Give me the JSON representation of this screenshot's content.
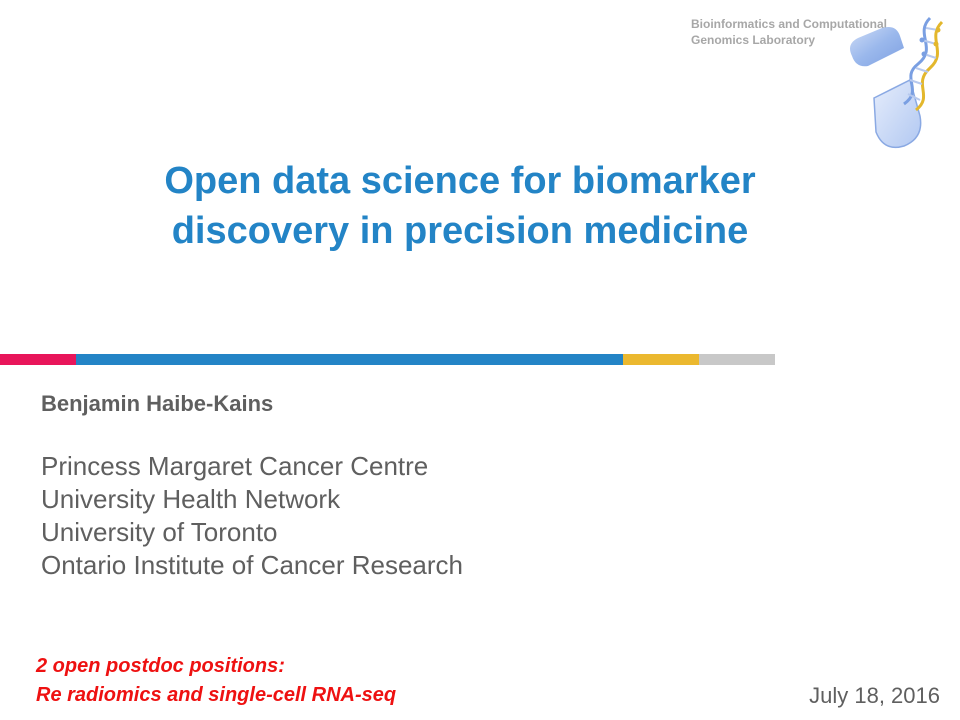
{
  "lab": {
    "line1": "Bioinformatics and Computational",
    "line2": "Genomics Laboratory"
  },
  "logo_icon": "capsule-dna-icon",
  "title": {
    "line1": "Open data science for biomarker",
    "line2": "discovery in precision medicine"
  },
  "stripe_colors": [
    "#e8155a",
    "#2384c6",
    "#ebb82f",
    "#c8c8c8"
  ],
  "author": "Benjamin Haibe-Kains",
  "affiliations": [
    "Princess Margaret Cancer Centre",
    "University Health Network",
    "University of Toronto",
    "Ontario Institute of Cancer Research"
  ],
  "notice": {
    "line1": "2 open postdoc positions:",
    "line2": "Re radiomics and single-cell RNA-seq"
  },
  "date": "July 18, 2016"
}
